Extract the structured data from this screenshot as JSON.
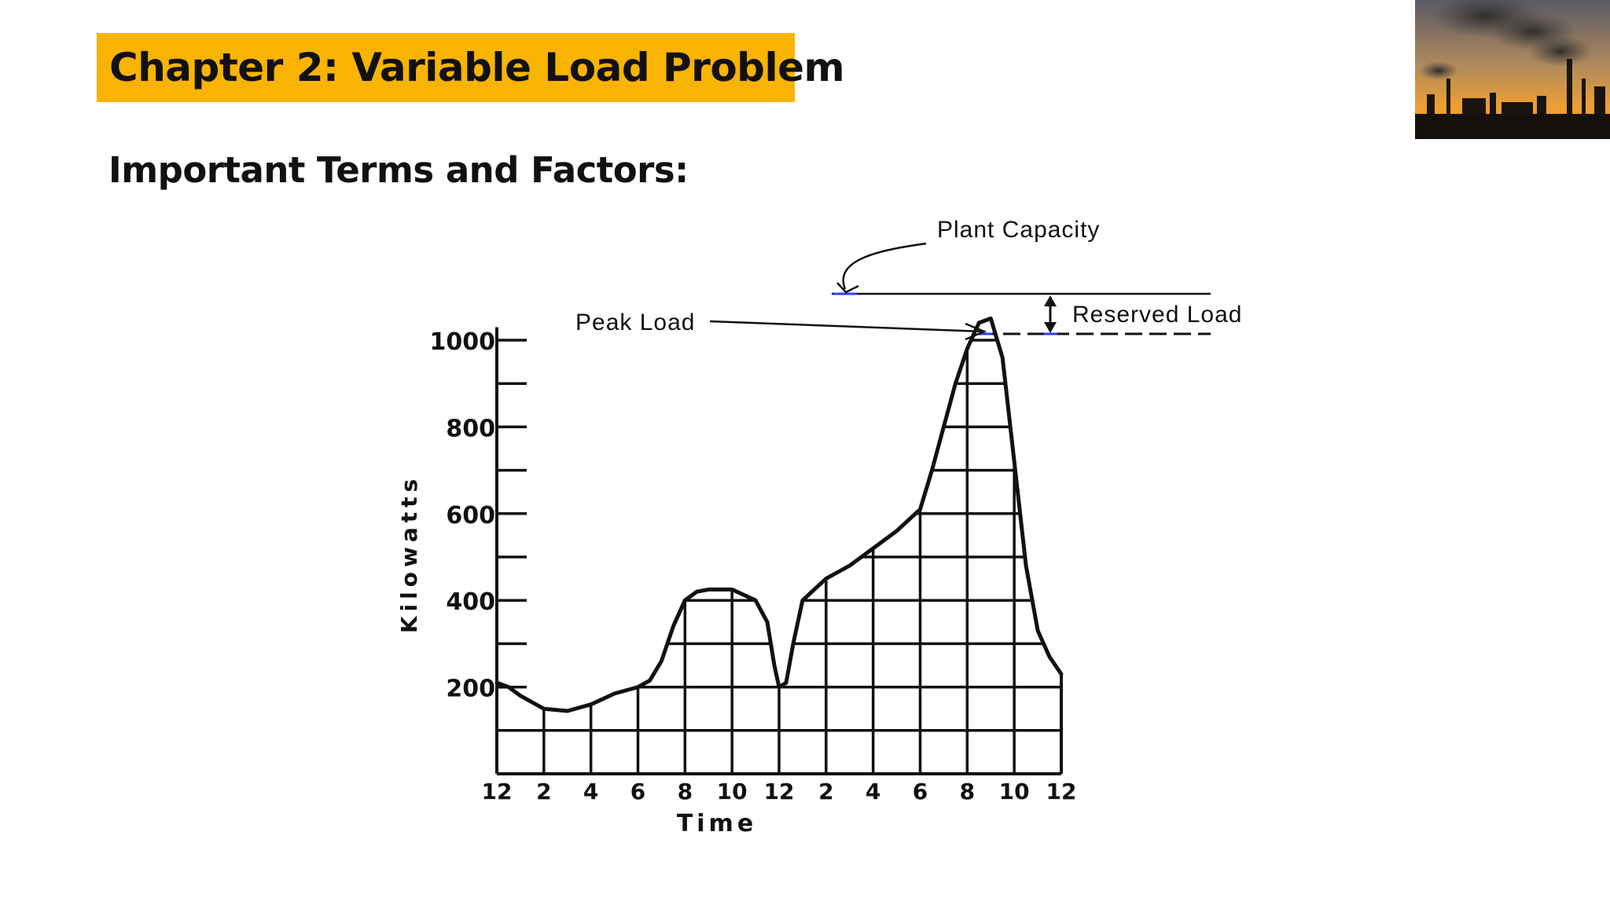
{
  "slide": {
    "title": "Chapter 2: Variable Load Problem",
    "subtitle": "Important Terms and Factors:",
    "colors": {
      "title_bg": "#f8b400",
      "ink": "#111111",
      "marker": "#2b3cff"
    }
  },
  "photo": {
    "icon": "industrial-smokestack-sunset-photo"
  },
  "annotations": {
    "plant_capacity": "Plant Capacity",
    "peak_load": "Peak Load",
    "reserved_load": "Reserved Load"
  },
  "chart_data": {
    "type": "area",
    "xlabel": "Time",
    "ylabel": "Kilowatts",
    "x_tick_labels": [
      "12",
      "2",
      "4",
      "6",
      "8",
      "10",
      "12",
      "2",
      "4",
      "6",
      "8",
      "10",
      "12"
    ],
    "y_tick_labels": [
      "1000",
      "800",
      "600",
      "400",
      "200"
    ],
    "y_tick_values": [
      1000,
      800,
      600,
      400,
      200
    ],
    "xlim": [
      0,
      24
    ],
    "ylim": [
      0,
      1000
    ],
    "grid": true,
    "series": [
      {
        "x": [
          0,
          0.5,
          1,
          2,
          3,
          4,
          5,
          6,
          6.5,
          7,
          7.5,
          8,
          8.5,
          9,
          10,
          11,
          11.5,
          11.8,
          12,
          12.3,
          12.6,
          13,
          14,
          15,
          16,
          17,
          18,
          18.5,
          19,
          19.5,
          20,
          20.5,
          21,
          21.5,
          22,
          22.5,
          23,
          23.5,
          24
        ],
        "y": [
          210,
          200,
          180,
          150,
          145,
          160,
          185,
          200,
          215,
          260,
          340,
          400,
          420,
          425,
          425,
          400,
          350,
          250,
          200,
          210,
          300,
          400,
          450,
          480,
          520,
          560,
          610,
          700,
          800,
          900,
          980,
          1040,
          1050,
          960,
          720,
          480,
          330,
          270,
          230
        ]
      }
    ],
    "peak_load_kw": 1050,
    "plant_capacity_kw": 1140
  }
}
